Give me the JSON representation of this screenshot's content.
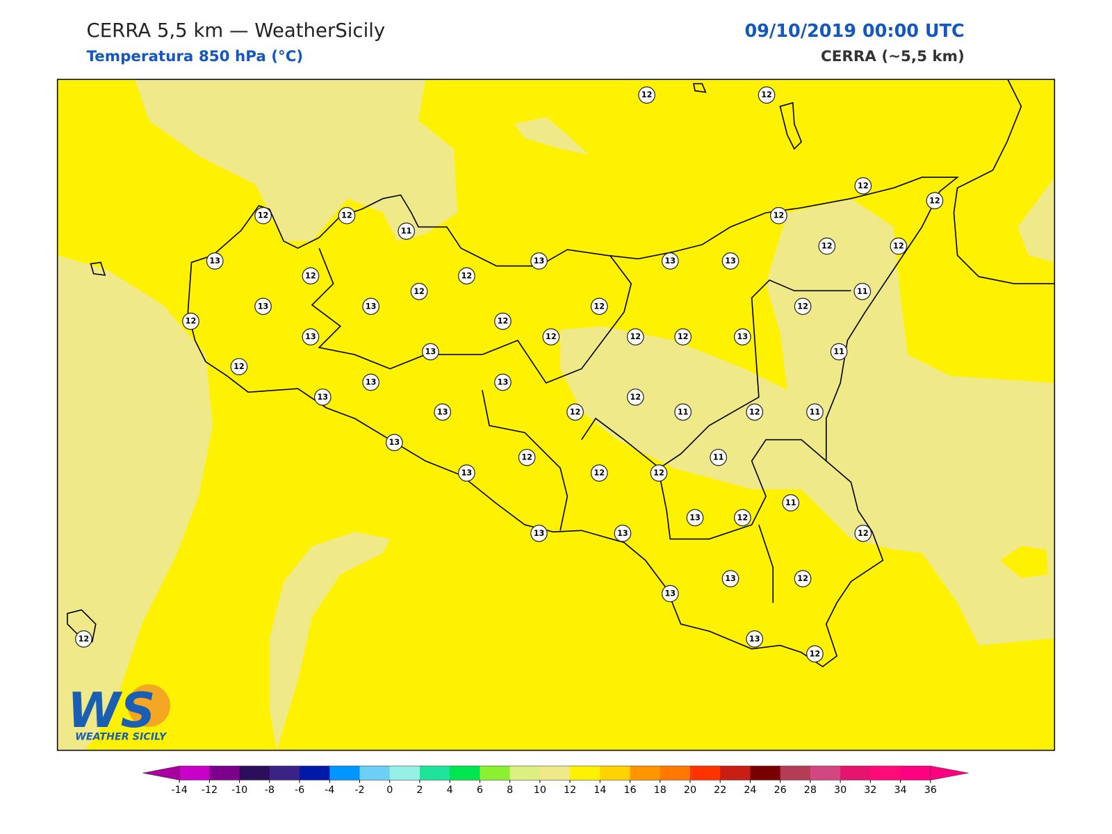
{
  "header": {
    "title": "CERRA 5,5 km — WeatherSicily",
    "subtitle": "Temperatura 850 hPa (°C)",
    "datetime": "09/10/2019 00:00 UTC",
    "model": "CERRA (~5,5 km)"
  },
  "map": {
    "stations": [
      12,
      12,
      12,
      12,
      12,
      12,
      11,
      12,
      13,
      13,
      13,
      13,
      12,
      12,
      12,
      12,
      12,
      11,
      13,
      13,
      12,
      12,
      12,
      12,
      13,
      12,
      12,
      12,
      13,
      13,
      11,
      12,
      13,
      13,
      12,
      13,
      13,
      12,
      11,
      12,
      11,
      13,
      11,
      12,
      13,
      12,
      12,
      11,
      13,
      12,
      13,
      13,
      12,
      13,
      12,
      13,
      13,
      12,
      12
    ]
  },
  "logo": {
    "mark": "WS",
    "name": "WEATHER SICILY"
  },
  "colorbar": {
    "ticks": [
      -14,
      -12,
      -10,
      -8,
      -6,
      -4,
      -2,
      0,
      2,
      4,
      6,
      8,
      10,
      12,
      14,
      16,
      18,
      20,
      22,
      24,
      26,
      28,
      30,
      32,
      34,
      36
    ],
    "under_color": "#a8009f",
    "over_color": "#ff0080",
    "colors": [
      "#c800c8",
      "#7d008c",
      "#2b0f5a",
      "#3a2384",
      "#0019a8",
      "#0096ff",
      "#6ecff6",
      "#96f0e6",
      "#1de39b",
      "#00e650",
      "#8cf032",
      "#dcf082",
      "#f0e98a",
      "#fef200",
      "#ffd200",
      "#ff9600",
      "#ff7800",
      "#ff3200",
      "#c81e14",
      "#780000",
      "#b43c55",
      "#d24682",
      "#e6146e",
      "#ff0a78",
      "#ff0080"
    ]
  }
}
